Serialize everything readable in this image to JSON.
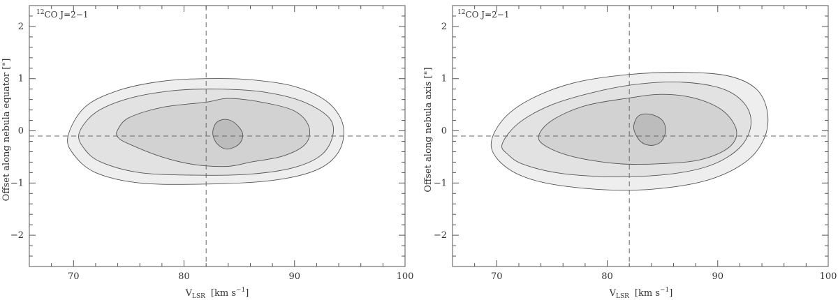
{
  "chart_data": [
    {
      "type": "contour",
      "annotation": {
        "sup": "12",
        "text": "CO J=2−1"
      },
      "xlabel": {
        "main": "V",
        "sub": "LSR",
        "units": "[km s",
        "units_sup": "−1",
        "units_end": "]"
      },
      "ylabel": "Offset along nebula equator [\"]",
      "xlim": [
        66,
        100
      ],
      "ylim": [
        -2.6,
        2.4
      ],
      "xticks": [
        70,
        80,
        90,
        100
      ],
      "yticks": [
        2,
        1,
        0,
        -1,
        -2
      ],
      "ytick_labels": [
        "2",
        "1",
        "0",
        "−1",
        "−2"
      ],
      "ref_lines": {
        "x": 82,
        "y": -0.1
      },
      "levels": [
        {
          "fill": "#eeeeee",
          "points": [
            [
              69.5,
              -0.1
            ],
            [
              71,
              0.45
            ],
            [
              74,
              0.77
            ],
            [
              78,
              0.95
            ],
            [
              82,
              1.0
            ],
            [
              86,
              0.98
            ],
            [
              90,
              0.85
            ],
            [
              93,
              0.55
            ],
            [
              94.4,
              0.1
            ],
            [
              94,
              -0.4
            ],
            [
              92,
              -0.75
            ],
            [
              88,
              -0.95
            ],
            [
              82,
              -1.02
            ],
            [
              76,
              -1.0
            ],
            [
              72,
              -0.8
            ],
            [
              70,
              -0.45
            ]
          ]
        },
        {
          "fill": "#e2e2e2",
          "points": [
            [
              70.5,
              -0.05
            ],
            [
              72,
              0.35
            ],
            [
              75,
              0.62
            ],
            [
              79,
              0.77
            ],
            [
              83,
              0.8
            ],
            [
              87,
              0.75
            ],
            [
              90.5,
              0.58
            ],
            [
              93,
              0.28
            ],
            [
              93.5,
              -0.05
            ],
            [
              92.5,
              -0.45
            ],
            [
              90,
              -0.7
            ],
            [
              86,
              -0.83
            ],
            [
              81,
              -0.85
            ],
            [
              76,
              -0.8
            ],
            [
              72.5,
              -0.6
            ],
            [
              71,
              -0.35
            ]
          ]
        },
        {
          "fill": "#d2d2d2",
          "points": [
            [
              74,
              0.02
            ],
            [
              75,
              0.25
            ],
            [
              78,
              0.45
            ],
            [
              82,
              0.55
            ],
            [
              84,
              0.62
            ],
            [
              87,
              0.55
            ],
            [
              90,
              0.38
            ],
            [
              91.3,
              0.08
            ],
            [
              91,
              -0.25
            ],
            [
              89,
              -0.48
            ],
            [
              86,
              -0.6
            ],
            [
              84,
              -0.68
            ],
            [
              81,
              -0.65
            ],
            [
              78,
              -0.5
            ],
            [
              75,
              -0.25
            ],
            [
              74,
              -0.12
            ]
          ]
        },
        {
          "fill": "#bcbcbc",
          "points": [
            [
              82.6,
              -0.05
            ],
            [
              82.9,
              0.15
            ],
            [
              83.7,
              0.22
            ],
            [
              84.6,
              0.15
            ],
            [
              85.3,
              -0.05
            ],
            [
              85.0,
              -0.25
            ],
            [
              83.9,
              -0.35
            ],
            [
              83.0,
              -0.25
            ]
          ]
        }
      ]
    },
    {
      "type": "contour",
      "annotation": {
        "sup": "12",
        "text": "CO J=2−1"
      },
      "xlabel": {
        "main": "V",
        "sub": "LSR",
        "units": "[km s",
        "units_sup": "−1",
        "units_end": "]"
      },
      "ylabel": "Offset along nebula axis [\"]",
      "xlim": [
        66,
        100
      ],
      "ylim": [
        -2.6,
        2.4
      ],
      "xticks": [
        70,
        80,
        90,
        100
      ],
      "yticks": [
        2,
        1,
        0,
        -1,
        -2
      ],
      "ytick_labels": [
        "2",
        "1",
        "0",
        "−1",
        "−2"
      ],
      "ref_lines": {
        "x": 82,
        "y": -0.1
      },
      "levels": [
        {
          "fill": "#eeeeee",
          "points": [
            [
              69.5,
              -0.3
            ],
            [
              70.5,
              0.2
            ],
            [
              73,
              0.6
            ],
            [
              77,
              0.92
            ],
            [
              82,
              1.08
            ],
            [
              87,
              1.12
            ],
            [
              91,
              1.05
            ],
            [
              93.5,
              0.8
            ],
            [
              94.5,
              0.35
            ],
            [
              94.2,
              -0.15
            ],
            [
              92.5,
              -0.6
            ],
            [
              89,
              -0.95
            ],
            [
              84,
              -1.12
            ],
            [
              79,
              -1.12
            ],
            [
              74,
              -0.98
            ],
            [
              71,
              -0.72
            ]
          ]
        },
        {
          "fill": "#e2e2e2",
          "points": [
            [
              70.5,
              -0.25
            ],
            [
              72,
              0.15
            ],
            [
              75,
              0.5
            ],
            [
              79,
              0.75
            ],
            [
              83,
              0.9
            ],
            [
              87,
              0.93
            ],
            [
              90.5,
              0.8
            ],
            [
              92.5,
              0.5
            ],
            [
              93,
              0.1
            ],
            [
              92,
              -0.32
            ],
            [
              89.5,
              -0.65
            ],
            [
              86,
              -0.82
            ],
            [
              81,
              -0.88
            ],
            [
              76,
              -0.82
            ],
            [
              72.5,
              -0.65
            ],
            [
              71,
              -0.45
            ]
          ]
        },
        {
          "fill": "#d2d2d2",
          "points": [
            [
              73.8,
              -0.1
            ],
            [
              75,
              0.2
            ],
            [
              78,
              0.48
            ],
            [
              82,
              0.63
            ],
            [
              85,
              0.7
            ],
            [
              88,
              0.62
            ],
            [
              90.5,
              0.38
            ],
            [
              91.7,
              0.0
            ],
            [
              91,
              -0.32
            ],
            [
              88.5,
              -0.55
            ],
            [
              85,
              -0.63
            ],
            [
              81,
              -0.63
            ],
            [
              77,
              -0.5
            ],
            [
              74.5,
              -0.3
            ]
          ]
        },
        {
          "fill": "#bcbcbc",
          "points": [
            [
              82.4,
              0.05
            ],
            [
              82.8,
              0.28
            ],
            [
              83.8,
              0.32
            ],
            [
              84.9,
              0.22
            ],
            [
              85.3,
              0.02
            ],
            [
              84.9,
              -0.2
            ],
            [
              84.0,
              -0.28
            ],
            [
              83.0,
              -0.2
            ]
          ]
        }
      ]
    }
  ]
}
